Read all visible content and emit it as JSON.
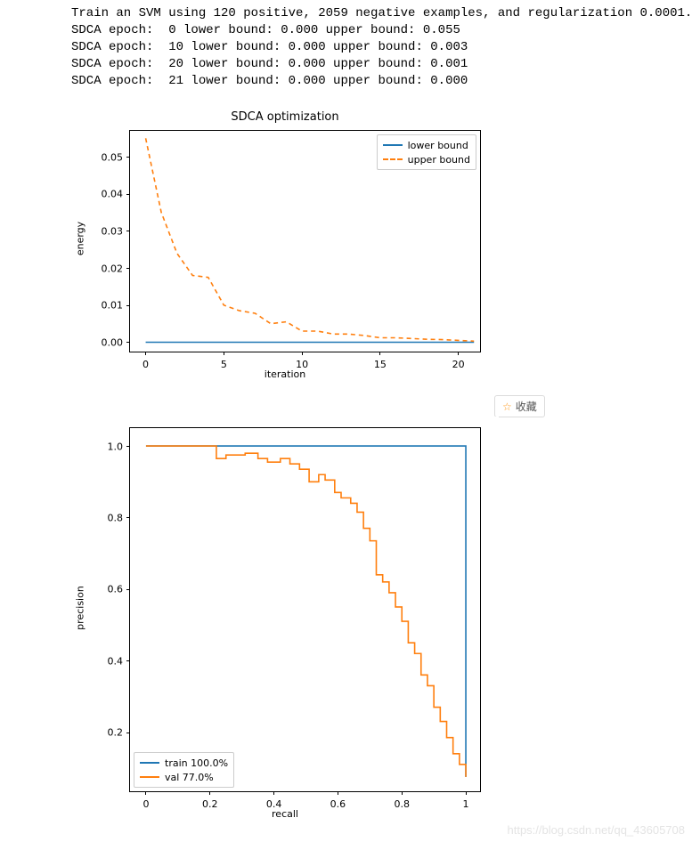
{
  "log_lines": [
    "Train an SVM using 120 positive, 2059 negative examples, and regularization 0.0001.",
    "SDCA epoch:  0 lower bound: 0.000 upper bound: 0.055",
    "SDCA epoch:  10 lower bound: 0.000 upper bound: 0.003",
    "SDCA epoch:  20 lower bound: 0.000 upper bound: 0.001",
    "SDCA epoch:  21 lower bound: 0.000 upper bound: 0.000"
  ],
  "fav_label": "收藏",
  "watermark": "https://blog.csdn.net/qq_43605708",
  "chart1": {
    "type": "line",
    "title": "SDCA optimization",
    "title_fontsize": 13,
    "xlabel": "iteration",
    "ylabel": "energy",
    "label_fontsize": 11,
    "xlim": [
      -1,
      21.5
    ],
    "ylim": [
      -0.003,
      0.057
    ],
    "xticks": [
      0,
      5,
      10,
      15,
      20
    ],
    "yticks": [
      0.0,
      0.01,
      0.02,
      0.03,
      0.04,
      0.05
    ],
    "background_color": "#ffffff",
    "legend_pos": "upper-right",
    "series": [
      {
        "name": "lower bound",
        "color": "#1f77b4",
        "dash": "solid",
        "linewidth": 1.6,
        "x": [
          0,
          1,
          2,
          3,
          4,
          5,
          6,
          7,
          8,
          9,
          10,
          11,
          12,
          13,
          14,
          15,
          16,
          17,
          18,
          19,
          20,
          21
        ],
        "y": [
          0,
          0,
          0,
          0,
          0,
          0,
          0,
          0,
          0,
          0,
          0,
          0,
          0,
          0,
          0,
          0,
          0,
          0,
          0,
          0,
          0,
          0
        ]
      },
      {
        "name": "upper bound",
        "color": "#ff7f0e",
        "dash": "5,4",
        "linewidth": 1.6,
        "x": [
          0,
          1,
          2,
          3,
          4,
          5,
          6,
          7,
          8,
          9,
          10,
          11,
          12,
          13,
          14,
          15,
          16,
          17,
          18,
          19,
          20,
          21
        ],
        "y": [
          0.055,
          0.035,
          0.024,
          0.018,
          0.0175,
          0.01,
          0.0085,
          0.0078,
          0.005,
          0.0055,
          0.003,
          0.003,
          0.0022,
          0.0022,
          0.0018,
          0.0012,
          0.0012,
          0.001,
          0.0008,
          0.0007,
          0.0005,
          0.0003
        ]
      }
    ]
  },
  "chart2": {
    "type": "line-step",
    "xlabel": "recall",
    "ylabel": "precision",
    "label_fontsize": 11,
    "xlim": [
      -0.05,
      1.05
    ],
    "ylim": [
      0.03,
      1.05
    ],
    "xticks": [
      0.0,
      0.2,
      0.4,
      0.6,
      0.8,
      1.0
    ],
    "yticks": [
      0.2,
      0.4,
      0.6,
      0.8,
      1.0
    ],
    "background_color": "#ffffff",
    "legend_pos": "lower-left",
    "series": [
      {
        "name": "train 100.0%",
        "color": "#1f77b4",
        "linewidth": 1.6,
        "x": [
          0.0,
          1.0,
          1.0
        ],
        "y": [
          1.0,
          1.0,
          0.075
        ]
      },
      {
        "name": "val 77.0%",
        "color": "#ff7f0e",
        "linewidth": 1.6,
        "x": [
          0.0,
          0.22,
          0.22,
          0.25,
          0.25,
          0.27,
          0.27,
          0.31,
          0.31,
          0.35,
          0.35,
          0.38,
          0.38,
          0.42,
          0.42,
          0.45,
          0.45,
          0.48,
          0.48,
          0.51,
          0.51,
          0.54,
          0.54,
          0.56,
          0.56,
          0.59,
          0.59,
          0.61,
          0.61,
          0.64,
          0.64,
          0.66,
          0.66,
          0.68,
          0.68,
          0.7,
          0.7,
          0.72,
          0.72,
          0.74,
          0.74,
          0.76,
          0.76,
          0.78,
          0.78,
          0.8,
          0.8,
          0.82,
          0.82,
          0.84,
          0.84,
          0.86,
          0.86,
          0.88,
          0.88,
          0.9,
          0.9,
          0.92,
          0.92,
          0.94,
          0.94,
          0.96,
          0.96,
          0.98,
          0.98,
          1.0,
          1.0
        ],
        "y": [
          1.0,
          1.0,
          0.965,
          0.965,
          0.975,
          0.975,
          0.975,
          0.975,
          0.98,
          0.98,
          0.965,
          0.965,
          0.955,
          0.955,
          0.965,
          0.965,
          0.95,
          0.95,
          0.935,
          0.935,
          0.9,
          0.9,
          0.92,
          0.92,
          0.905,
          0.905,
          0.87,
          0.87,
          0.855,
          0.855,
          0.84,
          0.84,
          0.815,
          0.815,
          0.77,
          0.77,
          0.735,
          0.735,
          0.64,
          0.64,
          0.62,
          0.62,
          0.59,
          0.59,
          0.55,
          0.55,
          0.51,
          0.51,
          0.45,
          0.45,
          0.42,
          0.42,
          0.36,
          0.36,
          0.33,
          0.33,
          0.27,
          0.27,
          0.23,
          0.23,
          0.185,
          0.185,
          0.14,
          0.14,
          0.11,
          0.11,
          0.075
        ]
      }
    ]
  }
}
